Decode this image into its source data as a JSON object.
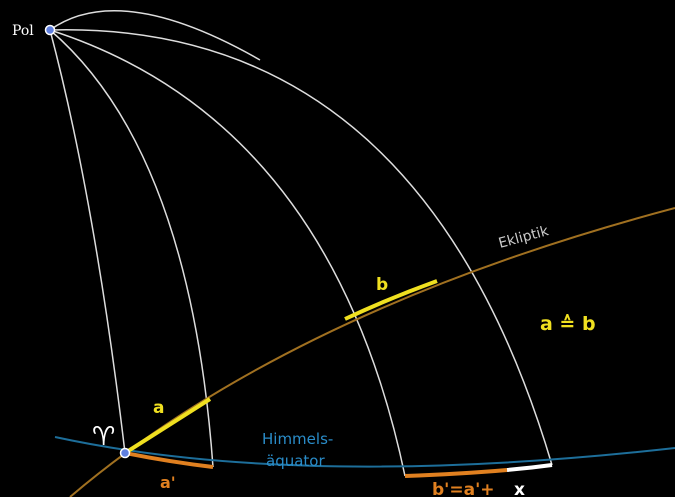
{
  "labels": {
    "pole": "Pol",
    "ecliptic": "Ekliptik",
    "arc_b": "b",
    "equivalence": "a ≙ b",
    "arc_a": "a",
    "equator_line1": "Himmels-",
    "equator_line2": "äquator",
    "arc_a_prime": "a'",
    "arc_b_prime": "b'=a'+",
    "excess": "x",
    "vernal_point": "♈︎"
  }
}
